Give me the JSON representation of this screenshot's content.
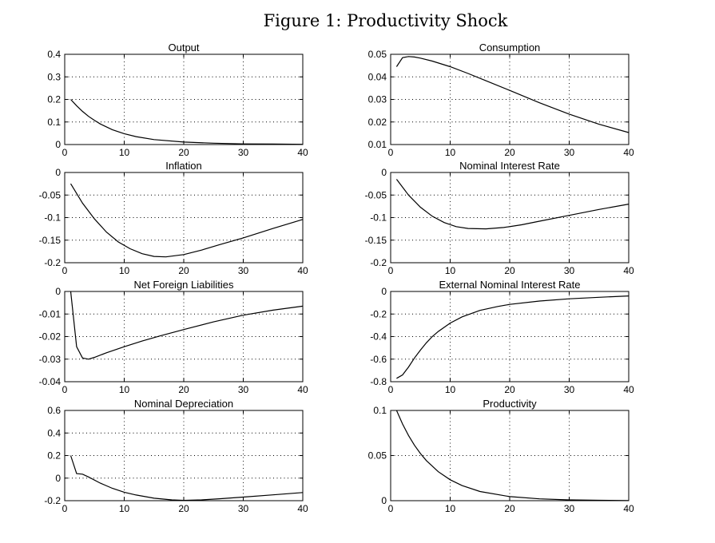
{
  "figure": {
    "title": "Figure 1: Productivity Shock"
  },
  "chart_data": [
    {
      "type": "line",
      "title": "Output",
      "xlabel": "",
      "ylabel": "",
      "xlim": [
        0,
        40
      ],
      "ylim": [
        0,
        0.4
      ],
      "grid": true,
      "xticks": [
        0,
        10,
        20,
        30,
        40
      ],
      "xtick_labels": [
        "0",
        "10",
        "20",
        "30",
        "40"
      ],
      "yticks": [
        0,
        0.1,
        0.2,
        0.3,
        0.4
      ],
      "ytick_labels": [
        "0",
        "0.1",
        "0.2",
        "0.3",
        "0.4"
      ],
      "x": [
        1,
        2,
        3,
        4,
        5,
        6,
        8,
        10,
        12,
        15,
        20,
        25,
        30,
        35,
        40
      ],
      "y": [
        0.2,
        0.172,
        0.147,
        0.125,
        0.107,
        0.091,
        0.066,
        0.048,
        0.035,
        0.022,
        0.011,
        0.006,
        0.003,
        0.002,
        0.001
      ]
    },
    {
      "type": "line",
      "title": "Consumption",
      "xlabel": "",
      "ylabel": "",
      "xlim": [
        0,
        40
      ],
      "ylim": [
        0.01,
        0.05
      ],
      "grid": true,
      "xticks": [
        0,
        10,
        20,
        30,
        40
      ],
      "xtick_labels": [
        "0",
        "10",
        "20",
        "30",
        "40"
      ],
      "yticks": [
        0.01,
        0.02,
        0.03,
        0.04,
        0.05
      ],
      "ytick_labels": [
        "0.01",
        "0.02",
        "0.03",
        "0.04",
        "0.05"
      ],
      "x": [
        1,
        2,
        3,
        4,
        5,
        7,
        10,
        13,
        16,
        20,
        25,
        30,
        35,
        40
      ],
      "y": [
        0.0445,
        0.0485,
        0.049,
        0.0488,
        0.0483,
        0.047,
        0.0445,
        0.0415,
        0.0383,
        0.034,
        0.0285,
        0.0235,
        0.019,
        0.0153
      ]
    },
    {
      "type": "line",
      "title": "Inflation",
      "xlabel": "",
      "ylabel": "",
      "xlim": [
        0,
        40
      ],
      "ylim": [
        -0.2,
        0
      ],
      "grid": true,
      "xticks": [
        0,
        10,
        20,
        30,
        40
      ],
      "xtick_labels": [
        "0",
        "10",
        "20",
        "30",
        "40"
      ],
      "yticks": [
        -0.2,
        -0.15,
        -0.1,
        -0.05,
        0
      ],
      "ytick_labels": [
        "-0.2",
        "-0.15",
        "-0.1",
        "-0.05",
        "0"
      ],
      "x": [
        1,
        3,
        5,
        7,
        9,
        11,
        13,
        15,
        17,
        20,
        23,
        26,
        30,
        35,
        40
      ],
      "y": [
        -0.025,
        -0.068,
        -0.103,
        -0.132,
        -0.154,
        -0.169,
        -0.18,
        -0.186,
        -0.187,
        -0.182,
        -0.172,
        -0.16,
        -0.145,
        -0.124,
        -0.104
      ]
    },
    {
      "type": "line",
      "title": "Nominal Interest Rate",
      "xlabel": "",
      "ylabel": "",
      "xlim": [
        0,
        40
      ],
      "ylim": [
        -0.2,
        0
      ],
      "grid": true,
      "xticks": [
        0,
        10,
        20,
        30,
        40
      ],
      "xtick_labels": [
        "0",
        "10",
        "20",
        "30",
        "40"
      ],
      "yticks": [
        -0.2,
        -0.15,
        -0.1,
        -0.05,
        0
      ],
      "ytick_labels": [
        "-0.2",
        "-0.15",
        "-0.1",
        "-0.05",
        "0"
      ],
      "x": [
        1,
        3,
        5,
        7,
        9,
        11,
        13,
        16,
        19,
        22,
        25,
        30,
        35,
        40
      ],
      "y": [
        -0.015,
        -0.05,
        -0.077,
        -0.097,
        -0.111,
        -0.12,
        -0.124,
        -0.125,
        -0.122,
        -0.116,
        -0.108,
        -0.095,
        -0.082,
        -0.07
      ]
    },
    {
      "type": "line",
      "title": "Net Foreign Liabilities",
      "xlabel": "",
      "ylabel": "",
      "xlim": [
        0,
        40
      ],
      "ylim": [
        -0.04,
        0
      ],
      "grid": true,
      "xticks": [
        0,
        10,
        20,
        30,
        40
      ],
      "xtick_labels": [
        "0",
        "10",
        "20",
        "30",
        "40"
      ],
      "yticks": [
        -0.04,
        -0.03,
        -0.02,
        -0.01,
        0
      ],
      "ytick_labels": [
        "-0.04",
        "-0.03",
        "-0.02",
        "-0.01",
        "0"
      ],
      "x": [
        1,
        2,
        3,
        4,
        5,
        7,
        10,
        13,
        16,
        20,
        25,
        30,
        35,
        40
      ],
      "y": [
        0,
        -0.0245,
        -0.0295,
        -0.03,
        -0.0292,
        -0.0272,
        -0.0245,
        -0.022,
        -0.0197,
        -0.0169,
        -0.0135,
        -0.0105,
        -0.0083,
        -0.0065
      ]
    },
    {
      "type": "line",
      "title": "External Nominal  Interest Rate",
      "xlabel": "",
      "ylabel": "",
      "xlim": [
        0,
        40
      ],
      "ylim": [
        -0.8,
        0
      ],
      "grid": true,
      "xticks": [
        0,
        10,
        20,
        30,
        40
      ],
      "xtick_labels": [
        "0",
        "10",
        "20",
        "30",
        "40"
      ],
      "yticks": [
        -0.8,
        -0.6,
        -0.4,
        -0.2,
        0
      ],
      "ytick_labels": [
        "-0.8",
        "-0.6",
        "-0.4",
        "-0.2",
        "0"
      ],
      "x": [
        1,
        2,
        3,
        4,
        5,
        6,
        7,
        8,
        10,
        12,
        15,
        18,
        20,
        25,
        30,
        35,
        40
      ],
      "y": [
        -0.77,
        -0.74,
        -0.67,
        -0.59,
        -0.52,
        -0.455,
        -0.4,
        -0.355,
        -0.28,
        -0.225,
        -0.168,
        -0.133,
        -0.115,
        -0.085,
        -0.065,
        -0.052,
        -0.04
      ]
    },
    {
      "type": "line",
      "title": "Nominal  Depreciation",
      "xlabel": "",
      "ylabel": "",
      "xlim": [
        0,
        40
      ],
      "ylim": [
        -0.2,
        0.6
      ],
      "grid": true,
      "xticks": [
        0,
        10,
        20,
        30,
        40
      ],
      "xtick_labels": [
        "0",
        "10",
        "20",
        "30",
        "40"
      ],
      "yticks": [
        -0.2,
        0,
        0.2,
        0.4,
        0.6
      ],
      "ytick_labels": [
        "-0.2",
        "0",
        "0.2",
        "0.4",
        "0.6"
      ],
      "x": [
        1,
        2,
        3,
        4,
        6,
        8,
        10,
        12,
        15,
        18,
        20,
        23,
        26,
        30,
        35,
        40
      ],
      "y": [
        0.2,
        0.04,
        0.035,
        0.01,
        -0.045,
        -0.09,
        -0.125,
        -0.15,
        -0.178,
        -0.193,
        -0.197,
        -0.193,
        -0.183,
        -0.168,
        -0.148,
        -0.128
      ]
    },
    {
      "type": "line",
      "title": "Productivity",
      "xlabel": "",
      "ylabel": "",
      "xlim": [
        0,
        40
      ],
      "ylim": [
        0,
        0.1
      ],
      "grid": true,
      "xticks": [
        0,
        10,
        20,
        30,
        40
      ],
      "xtick_labels": [
        "0",
        "10",
        "20",
        "30",
        "40"
      ],
      "yticks": [
        0,
        0.05,
        0.1
      ],
      "ytick_labels": [
        "0",
        "0.05",
        "0.1"
      ],
      "x": [
        1,
        2,
        3,
        4,
        5,
        6,
        8,
        10,
        12,
        15,
        20,
        25,
        30,
        35,
        40
      ],
      "y": [
        0.1,
        0.085,
        0.0722,
        0.0614,
        0.0522,
        0.0444,
        0.0321,
        0.0232,
        0.0167,
        0.0102,
        0.0045,
        0.002,
        0.0009,
        0.0004,
        0.0002
      ]
    }
  ]
}
